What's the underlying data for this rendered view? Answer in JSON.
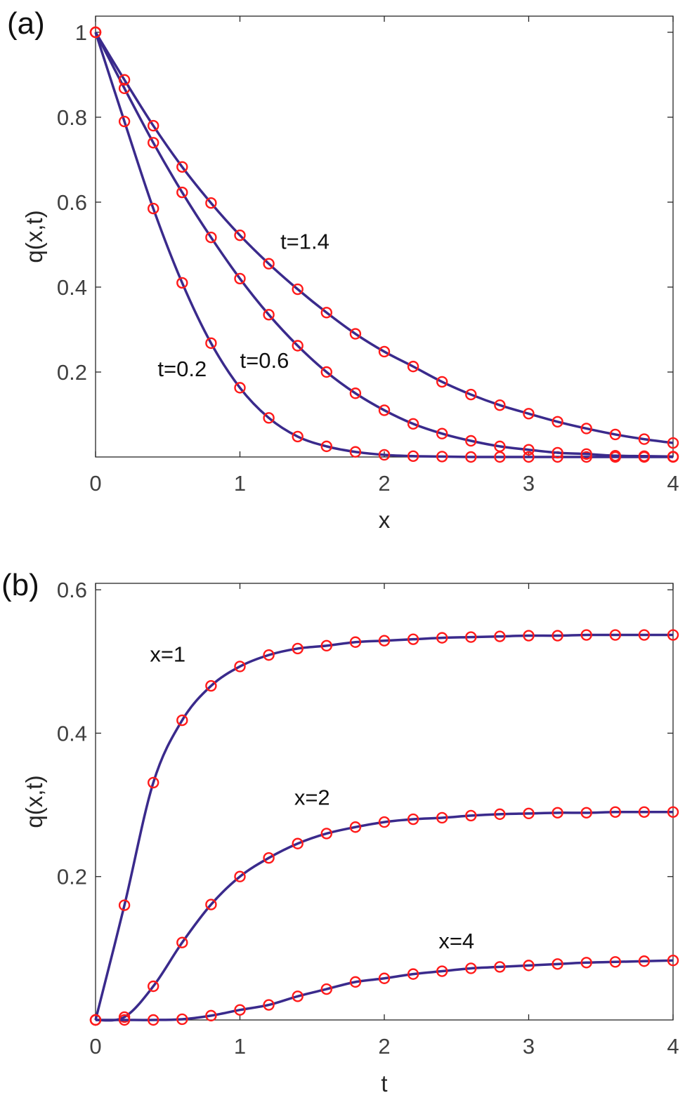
{
  "chart_data": [
    {
      "type": "line",
      "panel_label": "(a)",
      "xlabel": "x",
      "ylabel": "q(x,t)",
      "xlim": [
        0,
        4
      ],
      "ylim": [
        0,
        1.038
      ],
      "xticks": [
        0,
        1,
        2,
        3,
        4
      ],
      "yticks": [
        0.2,
        0.4,
        0.6,
        0.8,
        1
      ],
      "xtick_labels": [
        "0",
        "1",
        "2",
        "3",
        "4"
      ],
      "ytick_labels": [
        "0.2",
        "0.4",
        "0.6",
        "0.8",
        "1"
      ],
      "x": [
        0,
        0.2,
        0.4,
        0.6,
        0.8,
        1,
        1.2,
        1.4,
        1.6,
        1.8,
        2,
        2.2,
        2.4,
        2.6,
        2.8,
        3,
        3.2,
        3.4,
        3.6,
        3.8,
        4
      ],
      "line_color": "#3a2a8c",
      "marker_color": "#ff1a1a",
      "series": [
        {
          "name": "t=0.2",
          "values": [
            1,
            0.79,
            0.585,
            0.41,
            0.268,
            0.163,
            0.092,
            0.048,
            0.025,
            0.012,
            0.005,
            0.002,
            0.001,
            0,
            0,
            0,
            0,
            0,
            0,
            0,
            0
          ]
        },
        {
          "name": "t=0.6",
          "values": [
            1,
            0.868,
            0.74,
            0.623,
            0.517,
            0.42,
            0.335,
            0.262,
            0.2,
            0.15,
            0.11,
            0.078,
            0.055,
            0.038,
            0.025,
            0.017,
            0.01,
            0.007,
            0.003,
            0.002,
            0.001
          ]
        },
        {
          "name": "t=1.4",
          "values": [
            1,
            0.888,
            0.78,
            0.683,
            0.598,
            0.522,
            0.455,
            0.395,
            0.34,
            0.29,
            0.248,
            0.213,
            0.177,
            0.147,
            0.122,
            0.102,
            0.083,
            0.067,
            0.053,
            0.042,
            0.033
          ]
        }
      ],
      "annotations": [
        {
          "text": "t=0.2",
          "at": [
            0.6,
            0.19
          ]
        },
        {
          "text": "t=0.6",
          "at": [
            1.17,
            0.21
          ]
        },
        {
          "text": "t=1.4",
          "at": [
            1.45,
            0.49
          ]
        }
      ]
    },
    {
      "type": "line",
      "panel_label": "(b)",
      "xlabel": "t",
      "ylabel": "q(x,t)",
      "xlim": [
        0,
        4
      ],
      "ylim": [
        0,
        0.609
      ],
      "xticks": [
        0,
        1,
        2,
        3,
        4
      ],
      "yticks": [
        0.2,
        0.4,
        0.6
      ],
      "xtick_labels": [
        "0",
        "1",
        "2",
        "3",
        "4"
      ],
      "ytick_labels": [
        "0.2",
        "0.4",
        "0.6"
      ],
      "x": [
        0,
        0.2,
        0.4,
        0.6,
        0.8,
        1,
        1.2,
        1.4,
        1.6,
        1.8,
        2,
        2.2,
        2.4,
        2.6,
        2.8,
        3,
        3.2,
        3.4,
        3.6,
        3.8,
        4
      ],
      "line_color": "#3a2a8c",
      "marker_color": "#ff1a1a",
      "series": [
        {
          "name": "x=1",
          "values": [
            0,
            0.16,
            0.331,
            0.418,
            0.466,
            0.493,
            0.509,
            0.518,
            0.522,
            0.527,
            0.529,
            0.531,
            0.533,
            0.534,
            0.535,
            0.536,
            0.536,
            0.537,
            0.537,
            0.537,
            0.537
          ]
        },
        {
          "name": "x=2",
          "values": [
            0,
            0.004,
            0.047,
            0.108,
            0.161,
            0.2,
            0.226,
            0.246,
            0.26,
            0.269,
            0.276,
            0.28,
            0.282,
            0.285,
            0.287,
            0.288,
            0.289,
            0.289,
            0.29,
            0.29,
            0.29
          ]
        },
        {
          "name": "x=4",
          "values": [
            0,
            0,
            0,
            0.001,
            0.006,
            0.014,
            0.021,
            0.033,
            0.043,
            0.053,
            0.058,
            0.064,
            0.068,
            0.072,
            0.074,
            0.076,
            0.078,
            0.08,
            0.081,
            0.082,
            0.083
          ]
        }
      ],
      "annotations": [
        {
          "text": "x=1",
          "at": [
            0.5,
            0.5
          ]
        },
        {
          "text": "x=2",
          "at": [
            1.5,
            0.3
          ]
        },
        {
          "text": "x=4",
          "at": [
            2.5,
            0.1
          ]
        }
      ]
    }
  ]
}
